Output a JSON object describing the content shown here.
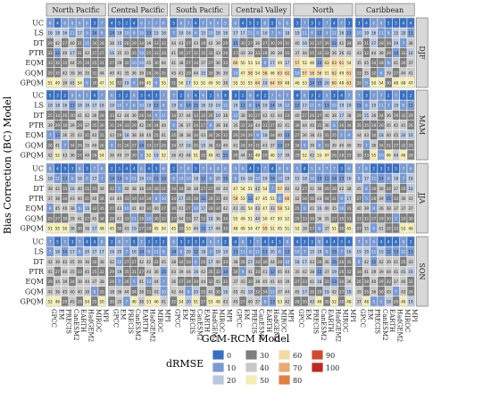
{
  "chart_data": {
    "type": "heatmap",
    "ylabel": "Bias Correction (BC) Model",
    "xlabel": "GCM-RCM Model",
    "regions": [
      "North Pacific",
      "Central Pacific",
      "South Pacific",
      "Central Valley",
      "North",
      "Caribbean"
    ],
    "seasons": [
      "DJF",
      "MAM",
      "JJA",
      "SON"
    ],
    "bc_models": [
      "UC",
      "LS",
      "DT",
      "PTR",
      "EQM",
      "GQM",
      "GPQM"
    ],
    "gcm_rcm_models": [
      "GPCC",
      "EM",
      "PRECIS",
      "CanESM2",
      "EARTH",
      "HadGEM2",
      "MIROC",
      "MPI"
    ],
    "legend": {
      "title": "dRMSE",
      "entries": [
        "0",
        "10",
        "20",
        "30",
        "40",
        "50",
        "60",
        "70",
        "80",
        "90",
        "100"
      ],
      "colors": [
        "#3a6fbf",
        "#7b9ad0",
        "#b9c7df",
        "#7e7e7e",
        "#c8c8c8",
        "#f2ecb6",
        "#f3d9a5",
        "#eaa872",
        "#de7f45",
        "#cf4a32",
        "#bb2a24"
      ]
    },
    "value_range": [
      0,
      100
    ],
    "cell_values_note": "Each panel is an 8 x 7 matrix of small dRMSE values; exact per-cell numbers are not legible at this resolution and are approximated in the script from the visible colour pattern."
  }
}
